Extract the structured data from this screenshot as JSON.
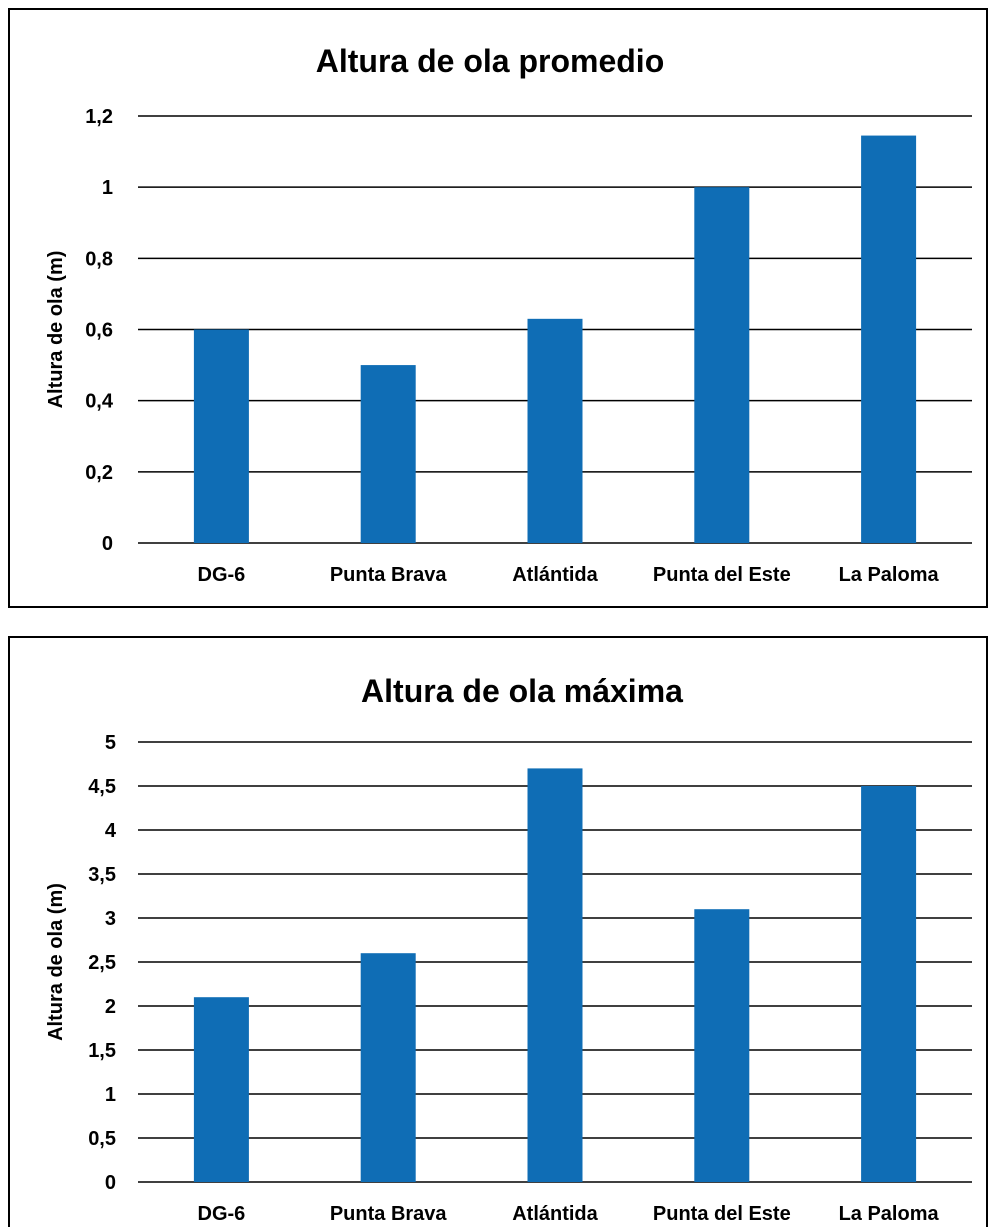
{
  "colors": {
    "bar": "#0f6db5",
    "grid": "#000000",
    "text": "#000000"
  },
  "chart_data": [
    {
      "type": "bar",
      "title": "Altura de ola promedio",
      "xlabel": "",
      "ylabel": "Altura de ola (m)",
      "categories": [
        "DG-6",
        "Punta Brava",
        "Atlántida",
        "Punta del Este",
        "La Paloma"
      ],
      "values": [
        0.6,
        0.5,
        0.63,
        1.0,
        1.145
      ],
      "ylim": [
        0,
        1.2
      ],
      "yticks": [
        0,
        0.2,
        0.4,
        0.6,
        0.8,
        1.0,
        1.2
      ],
      "ytick_labels": [
        "0",
        "0,2",
        "0,4",
        "0,6",
        "0,8",
        "1",
        "1,2"
      ],
      "grid": true,
      "legend": "none"
    },
    {
      "type": "bar",
      "title": "Altura de ola máxima",
      "xlabel": "",
      "ylabel": "Altura de ola (m)",
      "categories": [
        "DG-6",
        "Punta Brava",
        "Atlántida",
        "Punta del Este",
        "La Paloma"
      ],
      "values": [
        2.1,
        2.6,
        4.7,
        3.1,
        4.5
      ],
      "ylim": [
        0,
        5
      ],
      "yticks": [
        0,
        0.5,
        1,
        1.5,
        2,
        2.5,
        3,
        3.5,
        4,
        4.5,
        5
      ],
      "ytick_labels": [
        "0",
        "0,5",
        "1",
        "1,5",
        "2",
        "2,5",
        "3",
        "3,5",
        "4",
        "4,5",
        "5"
      ],
      "grid": true,
      "legend": "none"
    }
  ]
}
